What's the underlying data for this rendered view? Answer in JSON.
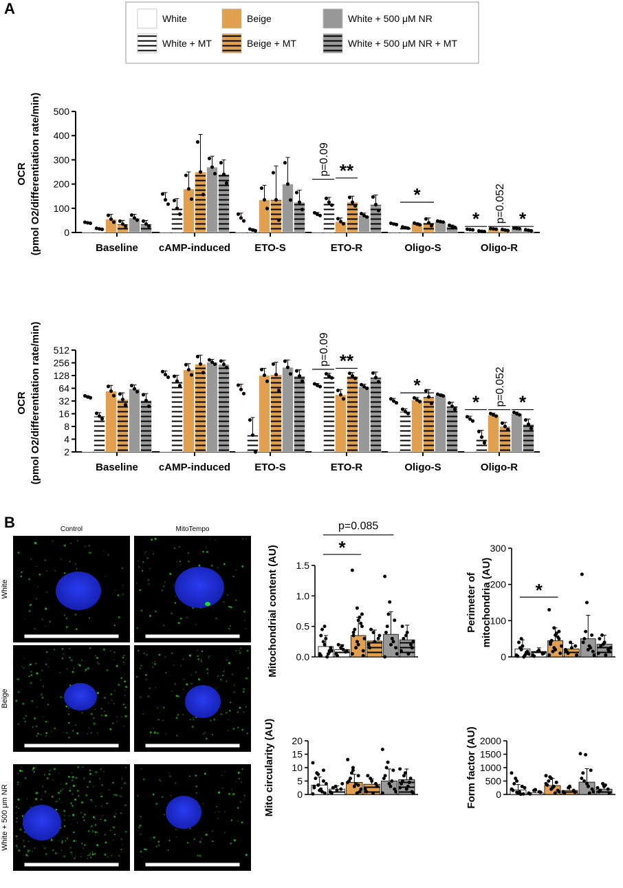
{
  "panels": {
    "a": "A",
    "b": "B"
  },
  "colors": {
    "white": "#ffffff",
    "beige": "#E0A050",
    "nr": "#999999",
    "axis": "#000000",
    "nucleus": "#1c2bd8",
    "mito": "#2fb52f"
  },
  "legend": [
    {
      "label": "White",
      "fill": "white",
      "striped": false
    },
    {
      "label": "Beige",
      "fill": "beige",
      "striped": false
    },
    {
      "label": "White + 500 μM NR",
      "fill": "nr",
      "striped": false
    },
    {
      "label": "White + MT",
      "fill": "white",
      "striped": true
    },
    {
      "label": "Beige + MT",
      "fill": "beige",
      "striped": true
    },
    {
      "label": "White + 500 μM NR + MT",
      "fill": "nr",
      "striped": true
    }
  ],
  "chart_data": [
    {
      "id": "ocr-linear",
      "type": "bar",
      "scale": "linear",
      "ylabel": "OCR",
      "ylabel2": "(pmol O2/differentiation rate/min)",
      "ylim": [
        0,
        500
      ],
      "yticks": [
        "0",
        "100",
        "200",
        "300",
        "400",
        "500"
      ],
      "categories": [
        "Baseline",
        "cAMP-induced",
        "ETO-S",
        "ETO-R",
        "Oligo-S",
        "Oligo-R"
      ],
      "series": [
        {
          "name": "White",
          "values": [
            40,
            135,
            60,
            75,
            35,
            12
          ]
        },
        {
          "name": "White + MT",
          "values": [
            15,
            100,
            10,
            125,
            20,
            5
          ]
        },
        {
          "name": "Beige",
          "values": [
            55,
            180,
            135,
            45,
            35,
            15
          ]
        },
        {
          "name": "Beige + MT",
          "values": [
            35,
            250,
            135,
            125,
            40,
            10
          ]
        },
        {
          "name": "White + 500 μM NR",
          "values": [
            60,
            270,
            200,
            70,
            45,
            17
          ]
        },
        {
          "name": "White + 500 μM NR + MT",
          "values": [
            35,
            240,
            125,
            115,
            25,
            9
          ]
        }
      ],
      "errors": [
        [
          3,
          30,
          20,
          8,
          4,
          2
        ],
        [
          3,
          40,
          5,
          20,
          4,
          2
        ],
        [
          20,
          70,
          60,
          15,
          5,
          2
        ],
        [
          15,
          155,
          140,
          25,
          20,
          3
        ],
        [
          15,
          45,
          110,
          10,
          3,
          2
        ],
        [
          15,
          60,
          50,
          40,
          6,
          3
        ]
      ],
      "annotations": [
        {
          "group": 3,
          "from": 0,
          "to": 1,
          "text": "p=0.09",
          "y": 220,
          "rotated": true
        },
        {
          "group": 3,
          "from": 2,
          "to": 3,
          "text": "**",
          "y": 225,
          "rotated": false
        },
        {
          "group": 4,
          "from": 1,
          "to": 3,
          "text": "*",
          "y": 125,
          "rotated": false
        },
        {
          "group": 5,
          "from": 0,
          "to": 1,
          "text": "*",
          "y": 25,
          "rotated": false
        },
        {
          "group": 5,
          "from": 2,
          "to": 3,
          "text": "p=0.052",
          "y": 25,
          "rotated": true
        },
        {
          "group": 5,
          "from": 4,
          "to": 5,
          "text": "*",
          "y": 25,
          "rotated": false
        }
      ]
    },
    {
      "id": "ocr-log",
      "type": "bar",
      "scale": "log2",
      "ylabel": "OCR",
      "ylabel2": "(pmol O2/differentiation rate/min)",
      "ylim": [
        2,
        512
      ],
      "yticks": [
        "2",
        "4",
        "8",
        "16",
        "32",
        "64",
        "128",
        "256",
        "512"
      ],
      "categories": [
        "Baseline",
        "cAMP-induced",
        "ETO-S",
        "ETO-R",
        "Oligo-S",
        "Oligo-R"
      ],
      "series": [
        {
          "name": "White",
          "values": [
            40,
            135,
            60,
            75,
            32,
            12
          ]
        },
        {
          "name": "White + MT",
          "values": [
            14,
            95,
            5,
            125,
            18,
            4.5
          ]
        },
        {
          "name": "Beige",
          "values": [
            55,
            175,
            130,
            45,
            34,
            15
          ]
        },
        {
          "name": "Beige + MT",
          "values": [
            35,
            240,
            135,
            125,
            40,
            8
          ]
        },
        {
          "name": "White + 500 μM NR",
          "values": [
            62,
            265,
            200,
            70,
            44,
            16
          ]
        },
        {
          "name": "White + 500 μM NR + MT",
          "values": [
            33,
            235,
            125,
            115,
            24,
            9
          ]
        }
      ],
      "errors": [
        [
          3,
          30,
          20,
          8,
          5,
          2
        ],
        [
          3,
          35,
          8,
          20,
          3,
          2
        ],
        [
          20,
          70,
          60,
          15,
          5,
          1.5
        ],
        [
          15,
          150,
          130,
          25,
          20,
          2
        ],
        [
          15,
          45,
          100,
          10,
          3,
          1.5
        ],
        [
          15,
          60,
          50,
          40,
          6,
          3
        ]
      ],
      "annotations": [
        {
          "group": 3,
          "from": 0,
          "to": 1,
          "text": "p=0.09",
          "y": 180,
          "rotated": true
        },
        {
          "group": 3,
          "from": 2,
          "to": 3,
          "text": "**",
          "y": 190,
          "rotated": false
        },
        {
          "group": 4,
          "from": 1,
          "to": 3,
          "text": "*",
          "y": 50,
          "rotated": false
        },
        {
          "group": 5,
          "from": 0,
          "to": 1,
          "text": "*",
          "y": 20,
          "rotated": false
        },
        {
          "group": 5,
          "from": 2,
          "to": 3,
          "text": "p=0.052",
          "y": 20,
          "rotated": true
        },
        {
          "group": 5,
          "from": 4,
          "to": 5,
          "text": "*",
          "y": 20,
          "rotated": false
        }
      ]
    },
    {
      "id": "mito-content",
      "type": "bar",
      "scale": "linear",
      "ylabel": "Mitochondrial content (AU)",
      "ylabel2": "",
      "ylim": [
        0,
        1.5
      ],
      "yticks": [
        "0.0",
        "0.5",
        "1.0",
        "1.5"
      ],
      "categories": [
        "White",
        "White + MT",
        "Beige",
        "Beige + MT",
        "White + 500 μM NR",
        "White + 500 μM NR + MT"
      ],
      "values": [
        0.17,
        0.12,
        0.35,
        0.26,
        0.37,
        0.28
      ],
      "errors": [
        0.18,
        0.08,
        0.3,
        0.18,
        0.37,
        0.24
      ],
      "points": [
        [
          0.05,
          0.5,
          0.08,
          0.02,
          0.3,
          0.15,
          0.45,
          0.0,
          0.1,
          0.25,
          0.05,
          0.03,
          0.2,
          0.1,
          0.35
        ],
        [
          0.05,
          0.15,
          0.08,
          0.02,
          0.18,
          0.1,
          0.2,
          0.12
        ],
        [
          1.42,
          0.8,
          0.5,
          0.35,
          0.2,
          0.1,
          0.45,
          0.65,
          0.3,
          0.15,
          0.55,
          0.05,
          0.25,
          0.7,
          0.4,
          0.6,
          0.02
        ],
        [
          0.2,
          0.4,
          0.3,
          0.15,
          0.25,
          0.35,
          0.45
        ],
        [
          1.32,
          0.9,
          0.6,
          0.4,
          0.2,
          0.15,
          0.5,
          0.3,
          0.05,
          0.7,
          0.25,
          0.0
        ],
        [
          0.1,
          0.35,
          0.2,
          0.5,
          0.4,
          0.15,
          0.3,
          0.05,
          0.25
        ]
      ],
      "annotations": [
        {
          "from": 0,
          "to": 4,
          "text": "p=0.085",
          "y": 2.0,
          "rotated": false
        },
        {
          "from": 0,
          "to": 2,
          "text": "*",
          "y": 1.68,
          "rotated": false
        }
      ]
    },
    {
      "id": "mito-perimeter",
      "type": "bar",
      "scale": "linear",
      "ylabel": "Perimeter of",
      "ylabel2": "mitochondria (AU)",
      "ylim": [
        0,
        300
      ],
      "yticks": [
        "0",
        "100",
        "200",
        "300"
      ],
      "categories": [
        "White",
        "White + MT",
        "Beige",
        "Beige + MT",
        "White + 500 μM NR",
        "White + 500 μM NR + MT"
      ],
      "values": [
        22,
        15,
        45,
        22,
        50,
        35
      ],
      "errors": [
        25,
        10,
        35,
        15,
        65,
        25
      ],
      "points": [
        [
          5,
          50,
          10,
          2,
          30,
          15,
          40,
          0,
          8,
          25,
          5,
          3,
          20,
          12
        ],
        [
          5,
          15,
          8,
          2,
          18,
          10
        ],
        [
          130,
          80,
          50,
          35,
          20,
          10,
          45,
          65,
          30,
          15,
          55,
          5,
          25,
          70,
          40,
          60
        ],
        [
          20,
          40,
          30,
          15,
          25,
          5,
          10
        ],
        [
          228,
          150,
          60,
          40,
          20,
          15,
          50,
          30,
          5,
          70,
          25
        ],
        [
          10,
          35,
          20,
          50,
          40,
          15,
          30,
          5,
          25,
          60
        ]
      ],
      "annotations": [
        {
          "from": 0,
          "to": 2,
          "text": "*",
          "y": 165,
          "rotated": false
        }
      ]
    },
    {
      "id": "mito-circularity",
      "type": "bar",
      "scale": "linear",
      "ylabel": "Mito circularity (AU)",
      "ylabel2": "",
      "ylim": [
        0,
        20
      ],
      "yticks": [
        "0",
        "5",
        "10",
        "15",
        "20"
      ],
      "categories": [
        "White",
        "White + MT",
        "Beige",
        "Beige + MT",
        "White + 500 μM NR",
        "White + 500 μM NR + MT"
      ],
      "values": [
        3.5,
        2.0,
        4.5,
        3.8,
        5.0,
        5.5
      ],
      "errors": [
        3.0,
        1.2,
        3.0,
        2.0,
        4.5,
        4.0
      ],
      "points": [
        [
          11.8,
          7.5,
          5.0,
          3.0,
          1.5,
          0.5,
          6.0,
          2.0,
          4.0,
          8.0,
          1.0,
          0.2,
          3.5,
          9.0,
          2.5
        ],
        [
          1.0,
          3.0,
          2.0,
          0.5,
          1.5,
          4.0,
          2.5
        ],
        [
          13.0,
          10.0,
          7.0,
          5.0,
          3.0,
          1.0,
          6.0,
          4.0,
          2.0,
          8.0,
          0.5,
          4.5,
          9.0,
          3.5
        ],
        [
          2.0,
          6.0,
          4.0,
          1.0,
          5.0,
          3.0,
          7.0,
          0.5
        ],
        [
          16.8,
          12.0,
          9.0,
          6.0,
          4.0,
          2.0,
          7.0,
          3.0,
          1.0,
          10.0,
          5.0,
          0.5
        ],
        [
          9.5,
          8.0,
          6.0,
          4.0,
          2.0,
          1.0,
          5.0,
          3.0,
          0.5,
          7.0,
          4.5,
          2.5
        ]
      ]
    },
    {
      "id": "form-factor",
      "type": "bar",
      "scale": "linear",
      "ylabel": "Form factor (AU)",
      "ylabel2": "",
      "ylim": [
        0,
        2000
      ],
      "yticks": [
        "0",
        "500",
        "1000",
        "1500",
        "2000"
      ],
      "categories": [
        "White",
        "White + MT",
        "Beige",
        "Beige + MT",
        "White + 500 μM NR",
        "White + 500 μM NR + MT"
      ],
      "values": [
        170,
        60,
        330,
        150,
        460,
        200
      ],
      "errors": [
        200,
        70,
        270,
        100,
        500,
        130
      ],
      "points": [
        [
          800,
          500,
          300,
          150,
          50,
          20,
          400,
          100,
          250,
          600,
          10,
          200,
          80
        ],
        [
          50,
          150,
          100,
          20,
          180,
          80
        ],
        [
          700,
          600,
          450,
          350,
          250,
          150,
          500,
          300,
          100,
          650,
          50,
          400,
          200
        ],
        [
          100,
          250,
          150,
          50,
          300,
          80
        ],
        [
          1520,
          1480,
          900,
          600,
          400,
          200,
          800,
          300,
          100,
          500,
          50
        ],
        [
          250,
          400,
          200,
          100,
          300,
          50,
          150,
          350
        ]
      ]
    }
  ],
  "microscopy": {
    "columns": [
      "Control",
      "MitoTempo"
    ],
    "rows": [
      "White",
      "Beige",
      "White + 500 μm NR"
    ]
  }
}
